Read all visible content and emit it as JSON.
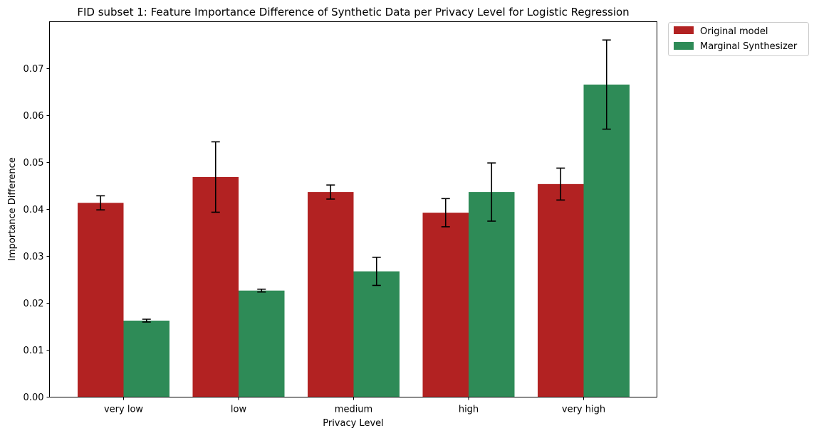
{
  "chart_data": {
    "type": "bar",
    "title": "FID subset 1: Feature Importance Difference of Synthetic Data per Privacy Level for Logistic Regression",
    "xlabel": "Privacy Level",
    "ylabel": "Importance Difference",
    "categories": [
      "very low",
      "low",
      "medium",
      "high",
      "very high"
    ],
    "ylim": [
      0,
      0.08
    ],
    "yticks": [
      0.0,
      0.01,
      0.02,
      0.03,
      0.04,
      0.05,
      0.06,
      0.07
    ],
    "ytick_labels": [
      "0.00",
      "0.01",
      "0.02",
      "0.03",
      "0.04",
      "0.05",
      "0.06",
      "0.07"
    ],
    "grid": false,
    "legend_position": "outside-top-right",
    "series": [
      {
        "name": "Original model",
        "color": "#b22222",
        "values": [
          0.0414,
          0.0469,
          0.0437,
          0.0393,
          0.0454
        ],
        "errors": [
          0.0015,
          0.0075,
          0.0015,
          0.003,
          0.0034
        ]
      },
      {
        "name": "Marginal Synthesizer",
        "color": "#2e8b57",
        "values": [
          0.0163,
          0.0227,
          0.0268,
          0.0437,
          0.0666
        ],
        "errors": [
          0.0003,
          0.0003,
          0.003,
          0.0062,
          0.0095
        ]
      }
    ]
  }
}
